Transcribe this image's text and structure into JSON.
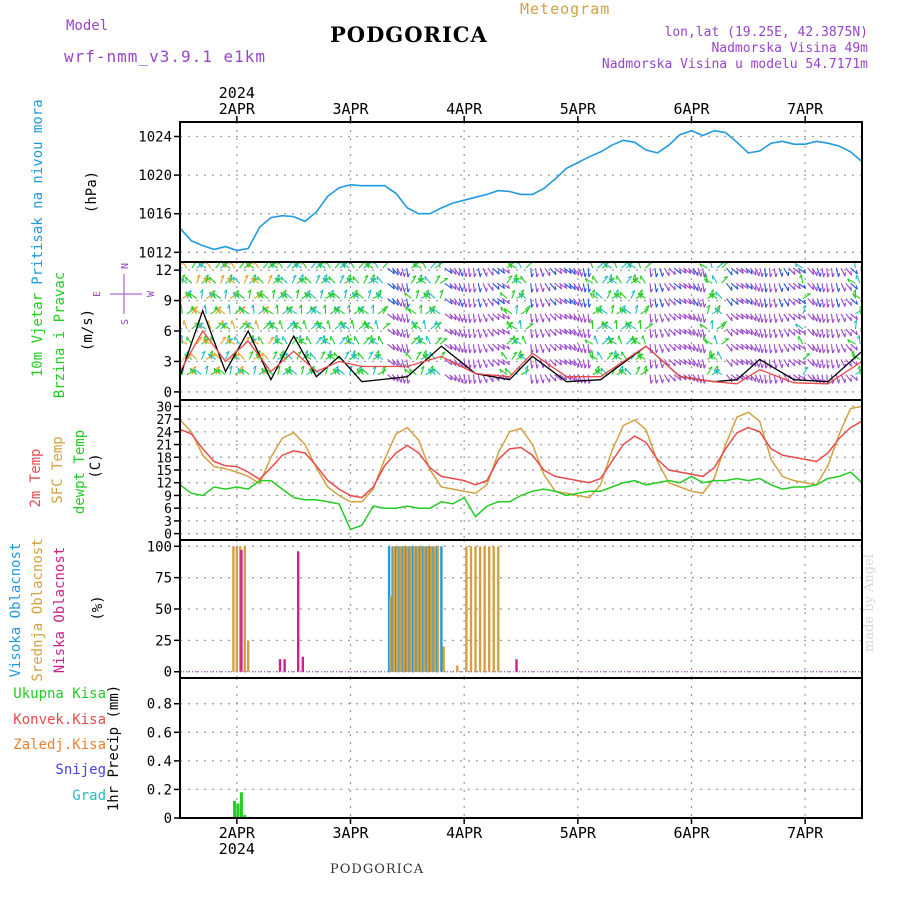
{
  "header": {
    "model_label": "Model",
    "model_name": "wrf-nmm_v3.9.1 e1km",
    "title": "PODGORICA",
    "meteogram_label": "Meteogram",
    "coords": "lon,lat (19.25E, 42.3875N)",
    "elevation": "Nadmorska Visina 49m",
    "model_elevation": "Nadmorska Visina u modelu 54.7171m"
  },
  "footer": {
    "station": "PODGORICA",
    "credit": "made by Angel"
  },
  "colors": {
    "pressure": "#1e9be0",
    "wind_green": "#22cc22",
    "wind_black": "#000000",
    "temp_2m": "#e84a4a",
    "temp_sfc": "#d4a040",
    "dewpt": "#22cc22",
    "cloud_high": "#1e9be0",
    "cloud_mid": "#d4a040",
    "cloud_low": "#d0208a",
    "purple": "#9944cc",
    "precip_total": "#22cc22",
    "precip_conv": "#e84a4a",
    "precip_frozen": "#f08030",
    "precip_snow": "#4444ee",
    "precip_hail": "#22bbbb"
  },
  "axis": {
    "year": "2024",
    "days": [
      "2APR",
      "3APR",
      "4APR",
      "5APR",
      "6APR",
      "7APR"
    ],
    "x_range_days": [
      1.5,
      7.5
    ]
  },
  "chart_data": [
    {
      "type": "line",
      "ylabel": "(hPa)",
      "side_labels": [
        "Pritisak na nivou mora"
      ],
      "ylim": [
        1011,
        1025.5
      ],
      "yticks": [
        "1012",
        "1016",
        "1020",
        "1024"
      ],
      "series": [
        {
          "x": [
            1.5,
            1.6,
            1.7,
            1.8,
            1.9,
            2.0,
            2.1,
            2.2,
            2.3,
            2.4,
            2.5,
            2.6,
            2.7,
            2.8,
            2.9,
            3.0,
            3.1,
            3.2,
            3.3,
            3.4,
            3.5,
            3.6,
            3.7,
            3.8,
            3.9,
            4.0,
            4.1,
            4.2,
            4.3,
            4.4,
            4.5,
            4.6,
            4.7,
            4.8,
            4.9,
            5.0,
            5.1,
            5.2,
            5.3,
            5.4,
            5.5,
            5.6,
            5.7,
            5.8,
            5.9,
            6.0,
            6.1,
            6.2,
            6.3,
            6.4,
            6.5,
            6.6,
            6.7,
            6.8,
            6.9,
            7.0,
            7.1,
            7.2,
            7.3,
            7.4,
            7.5
          ],
          "values": [
            1014.5,
            1013.2,
            1012.7,
            1012.3,
            1012.6,
            1012.2,
            1012.4,
            1014.6,
            1015.6,
            1015.8,
            1015.7,
            1015.2,
            1016.2,
            1017.8,
            1018.7,
            1019.0,
            1018.9,
            1018.9,
            1018.9,
            1018.1,
            1016.6,
            1016.0,
            1016.0,
            1016.6,
            1017.1,
            1017.4,
            1017.7,
            1018.0,
            1018.4,
            1018.3,
            1018.0,
            1018.0,
            1018.6,
            1019.6,
            1020.7,
            1021.3,
            1021.9,
            1022.4,
            1023.1,
            1023.6,
            1023.4,
            1022.6,
            1022.3,
            1023.1,
            1024.2,
            1024.6,
            1024.1,
            1024.6,
            1024.4,
            1023.4,
            1022.3,
            1022.5,
            1023.3,
            1023.5,
            1023.2,
            1023.2,
            1023.5,
            1023.3,
            1023.0,
            1022.4,
            1021.4
          ]
        }
      ]
    },
    {
      "type": "line",
      "ylabel": "(m/s)",
      "side_labels": [
        "10m Vjetar",
        "Brzina i Pravac"
      ],
      "compass": [
        "N",
        "S",
        "E",
        "W"
      ],
      "ylim": [
        -0.8,
        12.8
      ],
      "yticks": [
        "0",
        "3",
        "6",
        "9",
        "12"
      ],
      "series": [
        {
          "name": "speed_black",
          "x": [
            1.5,
            1.7,
            1.9,
            2.1,
            2.3,
            2.5,
            2.7,
            2.9,
            3.1,
            3.5,
            3.8,
            4.1,
            4.4,
            4.6,
            4.9,
            5.2,
            5.6,
            5.9,
            6.2,
            6.4,
            6.6,
            6.9,
            7.2,
            7.5
          ],
          "values": [
            1.5,
            8,
            2,
            6,
            1.2,
            5.5,
            1.5,
            3.5,
            1.0,
            1.5,
            4.5,
            1.8,
            1.2,
            3.5,
            1.0,
            1.2,
            4.5,
            1.5,
            1.0,
            1.2,
            3.2,
            1.2,
            1.0,
            4.0
          ]
        },
        {
          "name": "speed_red",
          "x": [
            1.5,
            1.7,
            1.9,
            2.1,
            2.3,
            2.5,
            2.7,
            2.9,
            3.1,
            3.5,
            3.8,
            4.1,
            4.4,
            4.6,
            4.9,
            5.2,
            5.6,
            5.9,
            6.2,
            6.4,
            6.6,
            6.9,
            7.2,
            7.5
          ],
          "values": [
            2,
            6,
            3,
            5,
            2,
            4,
            2,
            3,
            2.5,
            2.5,
            3.5,
            1.8,
            1.5,
            3.8,
            1.5,
            1.5,
            4.5,
            1.5,
            1.0,
            0.8,
            2.2,
            0.9,
            0.8,
            3.0
          ]
        }
      ]
    },
    {
      "type": "line",
      "ylabel": "(C)",
      "side_labels": [
        "2m Temp",
        "SFC Temp",
        "dewpt Temp"
      ],
      "ylim": [
        -1.5,
        31.5
      ],
      "yticks": [
        "0",
        "3",
        "6",
        "9",
        "12",
        "15",
        "18",
        "21",
        "24",
        "27",
        "30"
      ],
      "series": [
        {
          "name": "2m Temp",
          "x": [
            1.5,
            1.6,
            1.7,
            1.8,
            1.9,
            2.0,
            2.1,
            2.2,
            2.3,
            2.4,
            2.5,
            2.6,
            2.7,
            2.8,
            2.9,
            3.0,
            3.1,
            3.2,
            3.3,
            3.4,
            3.5,
            3.6,
            3.7,
            3.8,
            3.9,
            4.0,
            4.1,
            4.2,
            4.3,
            4.4,
            4.5,
            4.6,
            4.7,
            4.8,
            4.9,
            5.0,
            5.1,
            5.2,
            5.3,
            5.4,
            5.5,
            5.6,
            5.7,
            5.8,
            5.9,
            6.0,
            6.1,
            6.2,
            6.3,
            6.4,
            6.5,
            6.6,
            6.7,
            6.8,
            6.9,
            7.0,
            7.1,
            7.2,
            7.3,
            7.4,
            7.5
          ],
          "values": [
            24.6,
            23.5,
            20.0,
            17.0,
            16.0,
            15.8,
            14.5,
            12.8,
            15.5,
            18.5,
            19.5,
            19.0,
            16.0,
            12.5,
            10.5,
            9.0,
            8.5,
            11.0,
            16.0,
            19.0,
            20.8,
            19.0,
            15.5,
            13.5,
            13.0,
            12.5,
            11.5,
            12.5,
            17.5,
            20.0,
            20.3,
            18.5,
            15.0,
            13.5,
            13.0,
            12.5,
            12.0,
            13.0,
            17.0,
            21.0,
            23.0,
            21.5,
            17.5,
            15.0,
            14.5,
            14.0,
            13.5,
            15.5,
            20.0,
            23.8,
            25.0,
            24.0,
            20.0,
            18.5,
            18.0,
            17.5,
            17.0,
            19.0,
            22.5,
            25.0,
            26.5
          ]
        },
        {
          "name": "SFC Temp",
          "x": [
            1.5,
            1.6,
            1.7,
            1.8,
            1.9,
            2.0,
            2.1,
            2.2,
            2.3,
            2.4,
            2.5,
            2.6,
            2.7,
            2.8,
            2.9,
            3.0,
            3.1,
            3.2,
            3.3,
            3.4,
            3.5,
            3.6,
            3.7,
            3.8,
            3.9,
            4.0,
            4.1,
            4.2,
            4.3,
            4.4,
            4.5,
            4.6,
            4.7,
            4.8,
            4.9,
            5.0,
            5.1,
            5.2,
            5.3,
            5.4,
            5.5,
            5.6,
            5.7,
            5.8,
            5.9,
            6.0,
            6.1,
            6.2,
            6.3,
            6.4,
            6.5,
            6.6,
            6.7,
            6.8,
            6.9,
            7.0,
            7.1,
            7.2,
            7.3,
            7.4,
            7.5
          ],
          "values": [
            26.8,
            24.0,
            18.5,
            15.8,
            15.3,
            14.5,
            13.5,
            11.8,
            18.0,
            22.5,
            23.8,
            21.0,
            15.5,
            11.0,
            9.0,
            7.5,
            7.5,
            10.5,
            17.5,
            23.5,
            25.0,
            22.0,
            15.0,
            11.0,
            10.5,
            10.0,
            9.5,
            11.5,
            19.0,
            24.0,
            24.8,
            21.0,
            14.0,
            10.0,
            9.5,
            9.0,
            8.5,
            11.5,
            19.5,
            25.5,
            26.8,
            24.5,
            17.0,
            12.0,
            11.0,
            10.0,
            9.5,
            13.0,
            21.0,
            27.5,
            28.6,
            26.5,
            17.5,
            13.5,
            12.5,
            12.0,
            11.5,
            16.0,
            23.5,
            29.5,
            30.0
          ]
        },
        {
          "name": "dewpt Temp",
          "x": [
            1.5,
            1.6,
            1.7,
            1.8,
            1.9,
            2.0,
            2.1,
            2.2,
            2.3,
            2.4,
            2.5,
            2.6,
            2.7,
            2.8,
            2.9,
            3.0,
            3.1,
            3.2,
            3.3,
            3.4,
            3.5,
            3.6,
            3.7,
            3.8,
            3.9,
            4.0,
            4.1,
            4.2,
            4.3,
            4.4,
            4.5,
            4.6,
            4.7,
            4.8,
            4.9,
            5.0,
            5.1,
            5.2,
            5.3,
            5.4,
            5.5,
            5.6,
            5.7,
            5.8,
            5.9,
            6.0,
            6.1,
            6.2,
            6.3,
            6.4,
            6.5,
            6.6,
            6.7,
            6.8,
            6.9,
            7.0,
            7.1,
            7.2,
            7.3,
            7.4,
            7.5
          ],
          "values": [
            11.5,
            9.5,
            9.0,
            11.0,
            10.5,
            11.0,
            10.5,
            12.5,
            12.5,
            10.5,
            8.5,
            8.0,
            8.0,
            7.5,
            7.0,
            1.0,
            2.0,
            6.5,
            6.0,
            6.0,
            6.5,
            6.0,
            6.0,
            7.5,
            7.0,
            8.5,
            4.0,
            6.5,
            7.5,
            7.5,
            9.0,
            10.0,
            10.5,
            10.0,
            9.0,
            9.5,
            10.0,
            10.0,
            11.0,
            12.0,
            12.5,
            11.5,
            12.0,
            12.5,
            12.0,
            13.5,
            12.0,
            12.5,
            12.5,
            13.0,
            12.5,
            13.0,
            11.5,
            10.5,
            11.0,
            11.0,
            11.5,
            13.0,
            13.5,
            14.5,
            12.0
          ]
        }
      ]
    },
    {
      "type": "bar",
      "ylabel": "(%)",
      "side_labels": [
        "Visoka Oblacnost",
        "Srednja Oblacnost",
        "Niska Oblacnost"
      ],
      "ylim": [
        -5,
        105
      ],
      "yticks": [
        "0",
        "25",
        "50",
        "75",
        "100"
      ],
      "series": [
        {
          "name": "Visoka Oblacnost",
          "x": [
            3.34,
            3.37,
            3.4,
            3.43,
            3.46,
            3.49,
            3.52,
            3.55,
            3.58,
            3.61,
            3.64,
            3.67,
            3.7,
            3.73,
            3.76,
            3.8
          ],
          "values": [
            100,
            100,
            100,
            100,
            100,
            100,
            100,
            100,
            100,
            100,
            100,
            100,
            100,
            100,
            100,
            100
          ]
        },
        {
          "name": "Srednja Oblacnost",
          "x": [
            1.97,
            2.0,
            2.03,
            2.07,
            2.1,
            3.35,
            3.38,
            3.41,
            3.44,
            3.47,
            3.5,
            3.53,
            3.56,
            3.59,
            3.62,
            3.65,
            3.68,
            3.71,
            3.74,
            3.77,
            3.82,
            3.94,
            4.02,
            4.06,
            4.1,
            4.14,
            4.18,
            4.22,
            4.26,
            4.3
          ],
          "values": [
            100,
            100,
            100,
            100,
            25,
            60,
            100,
            100,
            100,
            100,
            100,
            100,
            100,
            100,
            100,
            100,
            100,
            100,
            100,
            100,
            20,
            5,
            100,
            100,
            100,
            100,
            100,
            100,
            100,
            100
          ]
        },
        {
          "name": "Niska Oblacnost",
          "x": [
            2.04,
            2.38,
            2.42,
            2.54,
            2.58,
            4.46
          ],
          "values": [
            97,
            10,
            10,
            96,
            12,
            10
          ]
        }
      ]
    },
    {
      "type": "bar",
      "ylabel": "1hr Precip (mm)",
      "side_labels": [
        "Ukupna Kisa",
        "Konvek.Kisa",
        "Zaledj.Kisa",
        "Snijeg",
        "Grad"
      ],
      "ylim": [
        0,
        0.98
      ],
      "yticks": [
        "0",
        "0.2",
        "0.4",
        "0.6",
        "0.8"
      ],
      "series": [
        {
          "name": "Ukupna Kisa",
          "x": [
            1.98,
            2.01,
            2.04,
            2.07
          ],
          "values": [
            0.12,
            0.1,
            0.18,
            0.02
          ]
        }
      ]
    }
  ]
}
